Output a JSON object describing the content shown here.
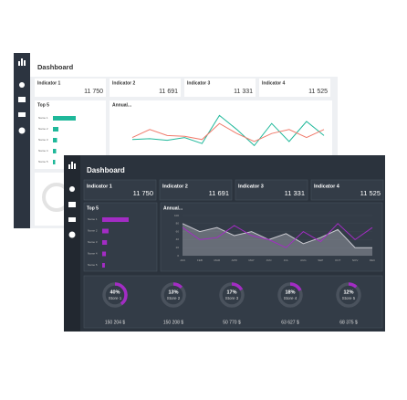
{
  "title": "Dashboard",
  "indicators": [
    {
      "label": "Indicator 1",
      "value": "11 750"
    },
    {
      "label": "Indicator 2",
      "value": "11 691"
    },
    {
      "label": "Indicator 3",
      "value": "11 331"
    },
    {
      "label": "Indicator 4",
      "value": "11 525"
    }
  ],
  "top5": {
    "title": "Top 5",
    "names": [
      "Name 1",
      "Name 2",
      "Name 3",
      "Name 4",
      "Name 5"
    ],
    "values": [
      50,
      12,
      9,
      7,
      5
    ]
  },
  "annual": {
    "title": "Annual...",
    "categories": [
      "JAN",
      "FEB",
      "MAR",
      "APR",
      "MAY",
      "JUN",
      "JUL",
      "AUG",
      "SEP",
      "OCT",
      "NOV",
      "DEC"
    ],
    "ylim": [
      0,
      100
    ],
    "yticks": [
      0,
      20,
      40,
      60,
      80,
      100
    ],
    "series": [
      {
        "color": "#c9c9d0",
        "values": [
          80,
          60,
          70,
          50,
          60,
          40,
          55,
          30,
          45,
          65,
          20,
          20
        ]
      },
      {
        "color": "#a32cc4",
        "values": [
          70,
          40,
          45,
          75,
          50,
          40,
          20,
          60,
          35,
          80,
          40,
          70
        ]
      }
    ]
  },
  "light_annual": {
    "ylim": [
      0,
      100
    ],
    "series": [
      {
        "color": "#1fb89a",
        "values": [
          30,
          32,
          28,
          35,
          20,
          90,
          55,
          15,
          70,
          25,
          75,
          40
        ]
      },
      {
        "color": "#f07b6c",
        "values": [
          35,
          55,
          40,
          38,
          30,
          70,
          45,
          25,
          45,
          55,
          35,
          55
        ]
      }
    ]
  },
  "stores": {
    "names": [
      "Store 1",
      "Store 2",
      "Store 3",
      "Store 4",
      "Store 5"
    ],
    "values": [
      40,
      13,
      17,
      18,
      12
    ],
    "value_labels": [
      "40%",
      "13%",
      "17%",
      "18%",
      "12%"
    ],
    "amounts": [
      "150 204 $",
      "150 208 $",
      "50 770 $",
      "63 627 $",
      "68 375 $"
    ]
  }
}
